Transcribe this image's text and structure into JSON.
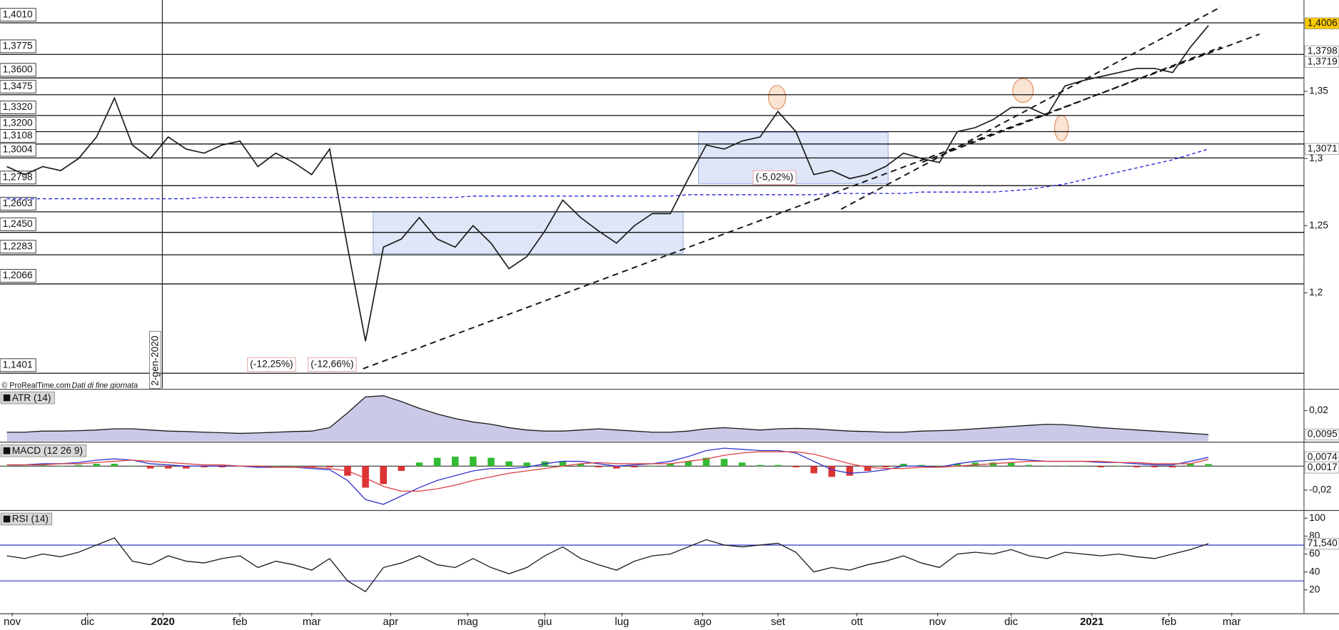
{
  "chart_data": [
    {
      "type": "line",
      "xlim": [
        -0.381,
        72.33
      ],
      "ylim": [
        1.1288,
        1.418
      ],
      "yticks": [
        {
          "value": 1.2,
          "label": "1,2"
        },
        {
          "value": 1.25,
          "label": "1,25"
        },
        {
          "value": 1.3,
          "label": "1,3"
        },
        {
          "value": 1.35,
          "label": "1,35"
        }
      ],
      "levels": [
        {
          "value": 1.401,
          "label": "1,4010"
        },
        {
          "value": 1.3775,
          "label": "1,3775"
        },
        {
          "value": 1.36,
          "label": "1,3600"
        },
        {
          "value": 1.3475,
          "label": "1,3475"
        },
        {
          "value": 1.332,
          "label": "1,3320"
        },
        {
          "value": 1.32,
          "label": "1,3200"
        },
        {
          "value": 1.3108,
          "label": "1,3108"
        },
        {
          "value": 1.3004,
          "label": "1,3004"
        },
        {
          "value": 1.2798,
          "label": "1,2798"
        },
        {
          "value": 1.2603,
          "label": "1,2603"
        },
        {
          "value": 1.245,
          "label": "1,2450"
        },
        {
          "value": 1.2283,
          "label": "1,2283"
        },
        {
          "value": 1.2066,
          "label": "1,2066"
        },
        {
          "value": 1.1401,
          "label": "1,1401"
        }
      ],
      "series": [
        {
          "color": "#1a1a1a",
          "values": [
            1.294,
            1.288,
            1.294,
            1.291,
            1.3,
            1.316,
            1.345,
            1.31,
            1.3,
            1.316,
            1.307,
            1.304,
            1.31,
            1.313,
            1.294,
            1.304,
            1.297,
            1.288,
            1.307,
            1.234,
            1.164,
            1.234,
            1.24,
            1.256,
            1.24,
            1.234,
            1.25,
            1.237,
            1.218,
            1.227,
            1.246,
            1.269,
            1.256,
            1.246,
            1.237,
            1.25,
            1.259,
            1.259,
            1.285,
            1.31,
            1.307,
            1.313,
            1.316,
            1.335,
            1.32,
            1.288,
            1.291,
            1.285,
            1.288,
            1.294,
            1.304,
            1.3,
            1.297,
            1.32,
            1.323,
            1.329,
            1.338,
            1.338,
            1.332,
            1.354,
            1.358,
            1.361,
            1.364,
            1.367,
            1.367,
            1.364,
            1.383,
            1.399
          ]
        },
        {
          "color": "#2222dd",
          "dashed": true,
          "values": [
            1.27,
            1.27,
            1.27,
            1.27,
            1.27,
            1.27,
            1.27,
            1.27,
            1.27,
            1.27,
            1.27,
            1.271,
            1.271,
            1.271,
            1.271,
            1.271,
            1.271,
            1.271,
            1.271,
            1.271,
            1.271,
            1.271,
            1.271,
            1.271,
            1.271,
            1.271,
            1.272,
            1.272,
            1.272,
            1.272,
            1.272,
            1.272,
            1.272,
            1.272,
            1.272,
            1.272,
            1.272,
            1.272,
            1.273,
            1.273,
            1.273,
            1.273,
            1.273,
            1.273,
            1.273,
            1.273,
            1.274,
            1.274,
            1.274,
            1.274,
            1.274,
            1.275,
            1.275,
            1.275,
            1.275,
            1.275,
            1.276,
            1.277,
            1.279,
            1.281,
            1.284,
            1.287,
            1.29,
            1.293,
            1.296,
            1.299,
            1.303,
            1.3071
          ]
        }
      ],
      "badges": [
        {
          "value": 1.4006,
          "label": "1,4006",
          "color": "#222222",
          "background": "#ffcc00"
        },
        {
          "value": 1.3798,
          "label": "1,3798",
          "color": "#cc4444",
          "background": "#ffffff"
        },
        {
          "value": 1.3719,
          "label": "1,3719",
          "color": "#33aa33",
          "background": "#ffffff"
        },
        {
          "value": 1.3071,
          "label": "1,3071",
          "color": "#3333cc",
          "background": "#ffffff"
        }
      ],
      "annotations": [
        "(-12,25%)",
        "(-12,66%)",
        "(-5,02%)"
      ],
      "date_marker": {
        "value": 8.67,
        "label": "2-gen-2020"
      },
      "source": "© ProRealTime.com",
      "source_note": "Dati di fine giornata"
    },
    {
      "type": "area",
      "title": "ATR (14)",
      "xlim": [
        -0.381,
        72.33
      ],
      "ylim": [
        0.0065,
        0.0286
      ],
      "yticks": [
        {
          "value": 0.02,
          "label": "0,02"
        }
      ],
      "series": [
        {
          "color": "#1a1a1a",
          "values": [
            0.0105,
            0.0105,
            0.011,
            0.011,
            0.0112,
            0.0115,
            0.012,
            0.012,
            0.0115,
            0.011,
            0.0108,
            0.0105,
            0.0103,
            0.01,
            0.0102,
            0.0105,
            0.0108,
            0.011,
            0.0125,
            0.019,
            0.026,
            0.0265,
            0.024,
            0.021,
            0.0185,
            0.0165,
            0.015,
            0.014,
            0.0125,
            0.0115,
            0.011,
            0.011,
            0.0115,
            0.012,
            0.0115,
            0.011,
            0.0105,
            0.0105,
            0.011,
            0.012,
            0.0125,
            0.012,
            0.0115,
            0.012,
            0.0122,
            0.012,
            0.0115,
            0.011,
            0.0108,
            0.0105,
            0.0105,
            0.011,
            0.0112,
            0.0115,
            0.012,
            0.0125,
            0.013,
            0.0135,
            0.014,
            0.0138,
            0.0132,
            0.0125,
            0.012,
            0.0115,
            0.011,
            0.0105,
            0.01,
            0.0095
          ]
        }
      ],
      "fill": "#c4c4e6",
      "badges": [
        {
          "value": 0.0095,
          "label": "0,0095",
          "color": "#222222",
          "background": "#ffffff"
        }
      ]
    },
    {
      "type": "line",
      "title": "MACD (12 26 9)",
      "xlim": [
        -0.381,
        72.33
      ],
      "ylim": [
        -0.0364,
        0.0186
      ],
      "yticks": [
        {
          "value": -0.02,
          "label": "-0,02"
        }
      ],
      "hlines": [
        0
      ],
      "hline_color": "#333333",
      "series": [
        {
          "type": "bar",
          "positive_color": "#33bb33",
          "negative_color": "#dd3333",
          "values": [
            0,
            0,
            0.001,
            0,
            0.001,
            0.002,
            0.002,
            0,
            -0.002,
            -0.002,
            -0.002,
            -0.001,
            -0.001,
            0,
            -0.001,
            0,
            0,
            -0.001,
            -0.001,
            -0.008,
            -0.018,
            -0.015,
            -0.004,
            0.003,
            0.007,
            0.008,
            0.008,
            0.007,
            0.004,
            0.003,
            0.004,
            0.004,
            0.002,
            -0.001,
            -0.002,
            -0.001,
            0,
            0.002,
            0.004,
            0.007,
            0.006,
            0.003,
            0.001,
            0.001,
            -0.001,
            -0.006,
            -0.009,
            -0.008,
            -0.004,
            -0.001,
            0.002,
            0.001,
            0,
            0.002,
            0.003,
            0.003,
            0.003,
            0.001,
            0,
            0,
            0,
            -0.001,
            0,
            -0.001,
            -0.001,
            -0.001,
            0.002,
            0.0017
          ]
        },
        {
          "color": "#3333cc",
          "values": [
            0.001,
            0.001,
            0.002,
            0.002,
            0.003,
            0.005,
            0.006,
            0.005,
            0.002,
            0.001,
            0,
            0,
            0,
            0,
            -0.001,
            -0.001,
            -0.001,
            -0.002,
            -0.003,
            -0.012,
            -0.028,
            -0.032,
            -0.025,
            -0.018,
            -0.012,
            -0.008,
            -0.004,
            -0.002,
            -0.002,
            -0.001,
            0.002,
            0.004,
            0.004,
            0.002,
            0,
            0.001,
            0.002,
            0.004,
            0.008,
            0.013,
            0.015,
            0.014,
            0.013,
            0.013,
            0.011,
            0.004,
            -0.003,
            -0.006,
            -0.005,
            -0.003,
            0,
            0,
            -0.001,
            0.002,
            0.004,
            0.005,
            0.006,
            0.005,
            0.004,
            0.004,
            0.004,
            0.003,
            0.003,
            0.002,
            0.001,
            0.001,
            0.004,
            0.0074
          ]
        },
        {
          "color": "#dd4444",
          "values": [
            0.001,
            0.001,
            0.001,
            0.002,
            0.002,
            0.003,
            0.004,
            0.005,
            0.004,
            0.003,
            0.002,
            0.001,
            0.001,
            0,
            0,
            -0.001,
            -0.001,
            -0.001,
            -0.002,
            -0.004,
            -0.01,
            -0.017,
            -0.021,
            -0.021,
            -0.019,
            -0.016,
            -0.012,
            -0.009,
            -0.006,
            -0.004,
            -0.002,
            0,
            0.002,
            0.003,
            0.002,
            0.002,
            0.002,
            0.002,
            0.004,
            0.006,
            0.009,
            0.011,
            0.012,
            0.012,
            0.012,
            0.01,
            0.006,
            0.002,
            -0.001,
            -0.002,
            -0.002,
            -0.001,
            -0.001,
            0,
            0.001,
            0.002,
            0.003,
            0.004,
            0.004,
            0.004,
            0.004,
            0.004,
            0.003,
            0.003,
            0.002,
            0.002,
            0.002,
            0.0057
          ]
        }
      ],
      "badges": [
        {
          "value": 0.0074,
          "label": "0,0074",
          "color": "#cc4444",
          "background": "#ffffff"
        },
        {
          "value": 0.0017,
          "label": "0,0017",
          "color": "#33aa33",
          "background": "#ffffff"
        }
      ]
    },
    {
      "type": "line",
      "title": "RSI (14)",
      "xlim": [
        -0.381,
        72.33
      ],
      "ylim": [
        -5.7,
        106.7
      ],
      "yticks": [
        100,
        80,
        60,
        40,
        20
      ],
      "hlines": [
        70,
        30
      ],
      "hline_color": "#3333cc",
      "series": [
        {
          "color": "#1a1a1a",
          "values": [
            58,
            55,
            60,
            57,
            62,
            70,
            78,
            52,
            48,
            58,
            52,
            50,
            55,
            58,
            45,
            52,
            48,
            42,
            55,
            30,
            18,
            45,
            50,
            58,
            48,
            45,
            55,
            45,
            38,
            45,
            58,
            68,
            55,
            48,
            42,
            52,
            58,
            60,
            68,
            76,
            70,
            68,
            70,
            72,
            62,
            40,
            45,
            42,
            48,
            52,
            58,
            50,
            45,
            60,
            62,
            60,
            65,
            58,
            55,
            62,
            60,
            58,
            60,
            57,
            55,
            60,
            65,
            71.54
          ]
        }
      ],
      "badges": [
        {
          "value": 71.54,
          "label": "71,540",
          "color": "#222222",
          "background": "#ffffff"
        }
      ],
      "xticks": [
        {
          "value": 0.3,
          "label": "nov"
        },
        {
          "value": 4.5,
          "label": "dic"
        },
        {
          "value": 8.7,
          "label": "2020"
        },
        {
          "value": 13,
          "label": "feb"
        },
        {
          "value": 17,
          "label": "mar"
        },
        {
          "value": 21.4,
          "label": "apr"
        },
        {
          "value": 25.7,
          "label": "mag"
        },
        {
          "value": 30,
          "label": "giu"
        },
        {
          "value": 34.3,
          "label": "lug"
        },
        {
          "value": 38.8,
          "label": "ago"
        },
        {
          "value": 43,
          "label": "set"
        },
        {
          "value": 47.4,
          "label": "ott"
        },
        {
          "value": 51.9,
          "label": "nov"
        },
        {
          "value": 56,
          "label": "dic"
        },
        {
          "value": 60.5,
          "label": "2021"
        },
        {
          "value": 64.8,
          "label": "feb"
        },
        {
          "value": 68.3,
          "label": "mar"
        }
      ]
    }
  ]
}
